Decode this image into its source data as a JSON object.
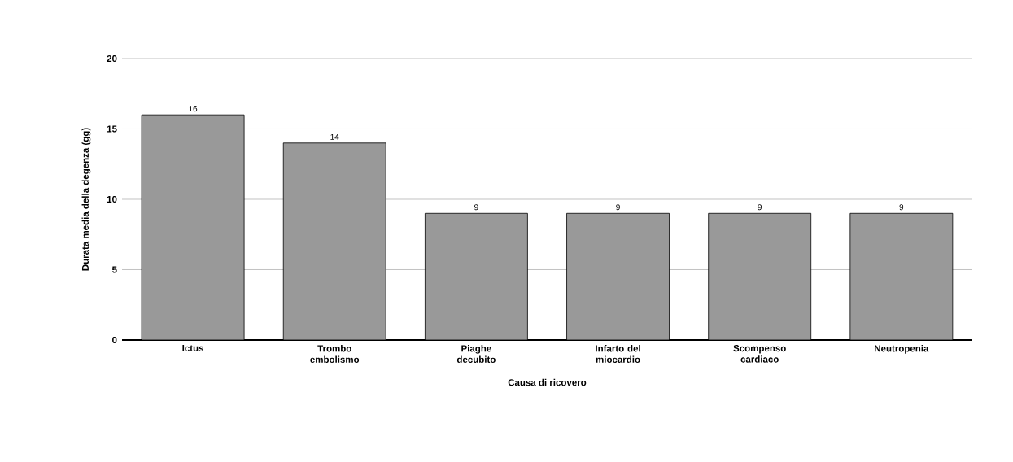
{
  "chart_data": {
    "type": "bar",
    "xlabel": "Causa di ricovero",
    "ylabel": "Durata media della degenza (gg)",
    "categories": [
      "Ictus",
      "Trombo embolismo",
      "Piaghe decubito",
      "Infarto del miocardio",
      "Scompenso cardiaco",
      "Neutropenia"
    ],
    "values": [
      16,
      14,
      9,
      9,
      9,
      9
    ],
    "color": "#999999",
    "ylim": [
      0,
      20
    ],
    "yticks": [
      0,
      5,
      10,
      15,
      20
    ],
    "grid": "y",
    "data_labels": true
  }
}
